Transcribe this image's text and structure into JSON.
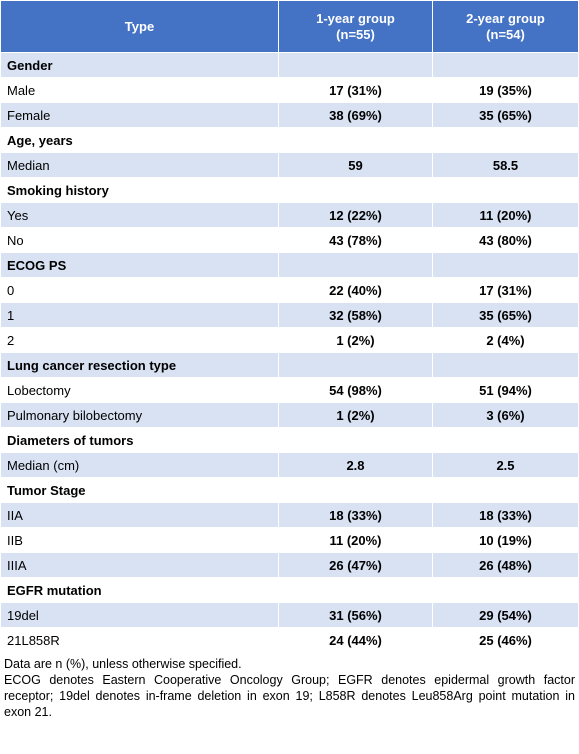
{
  "header": {
    "type": "Type",
    "group1": "1-year group\n(n=55)",
    "group1_line1": "1-year group",
    "group1_line2": "(n=55)",
    "group2_line1": "2-year group",
    "group2_line2": "(n=54)"
  },
  "rows": [
    {
      "label": "Gender",
      "section": true,
      "g1": "",
      "g2": ""
    },
    {
      "label": "Male",
      "section": false,
      "g1": "17 (31%)",
      "g2": "19 (35%)"
    },
    {
      "label": "Female",
      "section": false,
      "g1": "38 (69%)",
      "g2": "35 (65%)"
    },
    {
      "label": "Age, years",
      "section": true,
      "g1": "",
      "g2": ""
    },
    {
      "label": "Median",
      "section": false,
      "g1": "59",
      "g2": "58.5"
    },
    {
      "label": "Smoking history",
      "section": true,
      "g1": "",
      "g2": ""
    },
    {
      "label": "Yes",
      "section": false,
      "g1": "12 (22%)",
      "g2": "11 (20%)"
    },
    {
      "label": "No",
      "section": false,
      "g1": "43 (78%)",
      "g2": "43 (80%)"
    },
    {
      "label": "ECOG PS",
      "section": true,
      "g1": "",
      "g2": ""
    },
    {
      "label": "0",
      "section": false,
      "g1": "22 (40%)",
      "g2": "17 (31%)"
    },
    {
      "label": "1",
      "section": false,
      "g1": "32 (58%)",
      "g2": "35 (65%)"
    },
    {
      "label": "2",
      "section": false,
      "g1": "1 (2%)",
      "g2": "2 (4%)"
    },
    {
      "label": "Lung cancer resection type",
      "section": true,
      "g1": "",
      "g2": ""
    },
    {
      "label": "Lobectomy",
      "section": false,
      "g1": "54 (98%)",
      "g2": "51 (94%)"
    },
    {
      "label": "Pulmonary bilobectomy",
      "section": false,
      "g1": "1 (2%)",
      "g2": "3 (6%)"
    },
    {
      "label": "Diameters of tumors",
      "section": true,
      "g1": "",
      "g2": ""
    },
    {
      "label": "Median (cm)",
      "section": false,
      "g1": "2.8",
      "g2": "2.5"
    },
    {
      "label": "Tumor Stage",
      "section": true,
      "g1": "",
      "g2": ""
    },
    {
      "label": "IIA",
      "section": false,
      "g1": "18 (33%)",
      "g2": "18 (33%)"
    },
    {
      "label": "IIB",
      "section": false,
      "g1": "11 (20%)",
      "g2": "10 (19%)"
    },
    {
      "label": "IIIA",
      "section": false,
      "g1": "26 (47%)",
      "g2": "26 (48%)"
    },
    {
      "label": "EGFR mutation",
      "section": true,
      "g1": "",
      "g2": ""
    },
    {
      "label": "19del",
      "section": false,
      "g1": "31 (56%)",
      "g2": "29 (54%)"
    },
    {
      "label": "21L858R",
      "section": false,
      "g1": "24 (44%)",
      "g2": "25 (46%)"
    }
  ],
  "notes": {
    "line1": "Data are n (%), unless otherwise specified.",
    "line2": "ECOG denotes Eastern Cooperative Oncology Group; EGFR denotes epidermal growth factor receptor; 19del denotes in-frame deletion in exon 19; L858R denotes Leu858Arg point mutation in exon 21."
  }
}
